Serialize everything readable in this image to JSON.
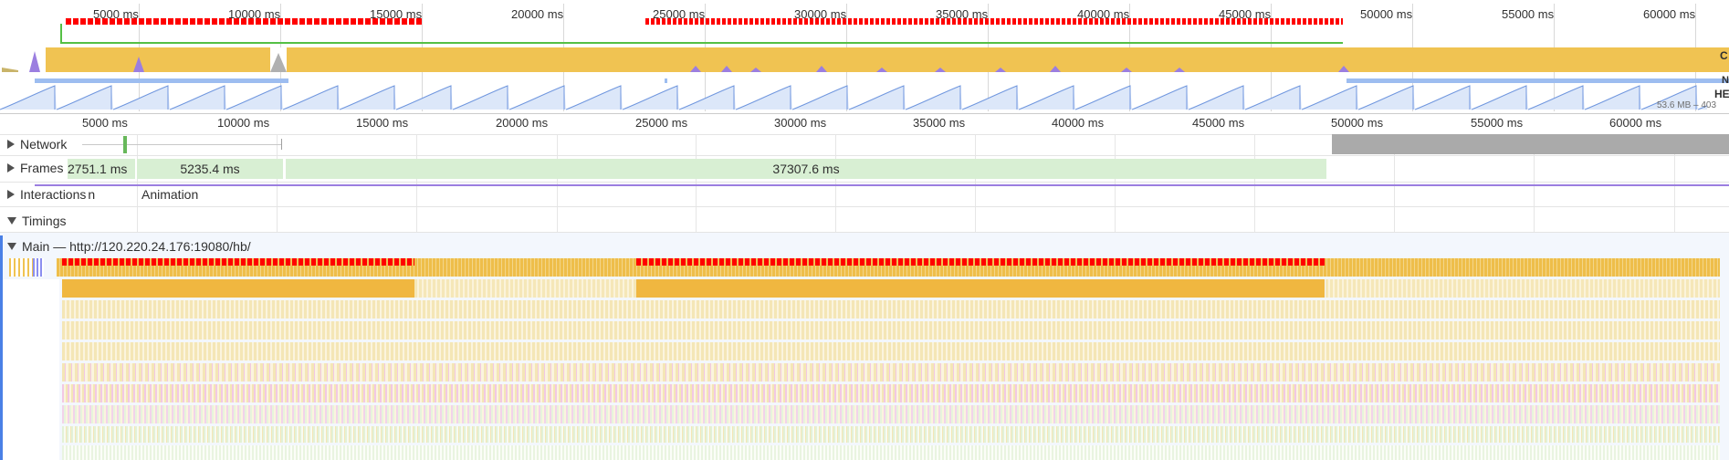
{
  "overview": {
    "ticks": [
      "5000 ms",
      "10000 ms",
      "15000 ms",
      "20000 ms",
      "25000 ms",
      "30000 ms",
      "35000 ms",
      "40000 ms",
      "45000 ms",
      "50000 ms",
      "55000 ms",
      "60000 ms"
    ],
    "heap_label": "HE",
    "heap_range": "53.6 MB – 403",
    "cpu_cut_label": "C",
    "net_cut_label": "N"
  },
  "ruler": {
    "ticks": [
      "5000 ms",
      "10000 ms",
      "15000 ms",
      "20000 ms",
      "25000 ms",
      "30000 ms",
      "35000 ms",
      "40000 ms",
      "45000 ms",
      "50000 ms",
      "55000 ms",
      "60000 ms"
    ]
  },
  "tracks": {
    "network": "Network",
    "frames": "Frames",
    "interactions": "Interactions",
    "interactions_suffix": "n",
    "animation": "Animation",
    "timings": "Timings",
    "main": "Main — http://120.220.24.176:19080/hb/"
  },
  "frames": [
    "2751.1 ms",
    "5235.4 ms",
    "37307.6 ms"
  ],
  "colors": {
    "scripting": "#f0c352",
    "long_task": "#ff0000",
    "rendering": "#c89ce8",
    "heap": "#bcd1f3",
    "frames": "#d8efd3",
    "network_grey": "#aaaaaa",
    "selection": "#4a80e6"
  }
}
